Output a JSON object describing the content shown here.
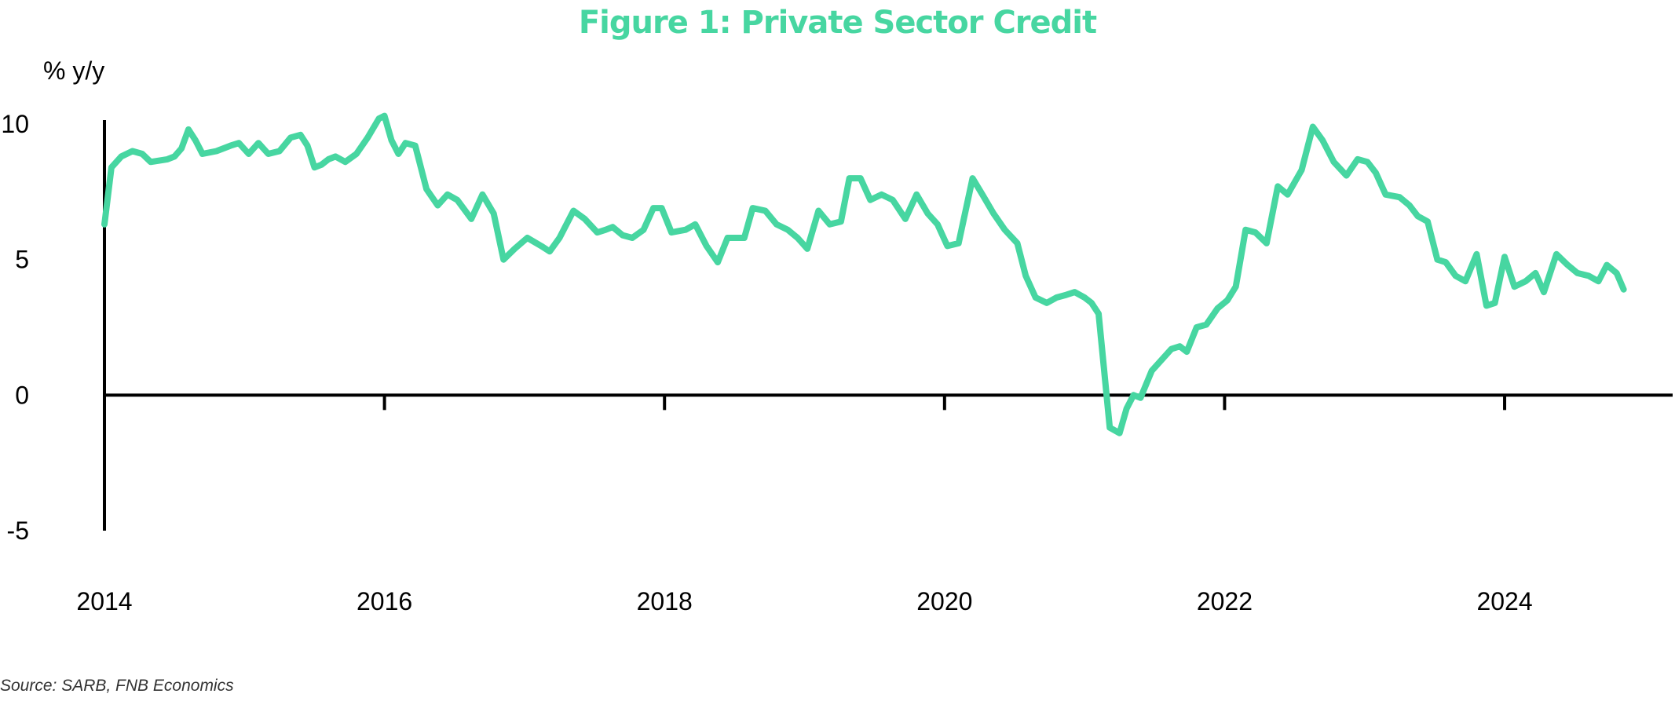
{
  "chart_data": {
    "type": "line",
    "title": "Figure 1: Private Sector Credit",
    "ylabel": "% y/y",
    "xlabel": "",
    "source": "Source: SARB, FNB Economics",
    "line_color": "#47d6a1",
    "axis_color": "#000000",
    "xlim": [
      2014.0,
      2025.2
    ],
    "ylim": [
      -5,
      10
    ],
    "y_ticks": [
      10,
      5,
      0,
      -5
    ],
    "y_tick_labels": [
      "10",
      "5",
      "0",
      "-5"
    ],
    "x_ticks": [
      2016,
      2018,
      2020,
      2022,
      2024
    ],
    "x_tick_labels": [
      "2014",
      "2016",
      "2018",
      "2020",
      "2022",
      "2024"
    ],
    "x_tick_label_values": [
      2014,
      2016,
      2018,
      2020,
      2022,
      2024
    ],
    "grid": false,
    "series": [
      {
        "values": [
          [
            2014.0,
            6.3
          ],
          [
            2014.05,
            8.4
          ],
          [
            2014.12,
            8.8
          ],
          [
            2014.2,
            9.0
          ],
          [
            2014.27,
            8.9
          ],
          [
            2014.33,
            8.6
          ],
          [
            2014.45,
            8.7
          ],
          [
            2014.5,
            8.8
          ],
          [
            2014.55,
            9.1
          ],
          [
            2014.6,
            9.8
          ],
          [
            2014.65,
            9.4
          ],
          [
            2014.7,
            8.9
          ],
          [
            2014.8,
            9.0
          ],
          [
            2014.9,
            9.2
          ],
          [
            2014.96,
            9.3
          ],
          [
            2015.03,
            8.9
          ],
          [
            2015.1,
            9.3
          ],
          [
            2015.17,
            8.9
          ],
          [
            2015.25,
            9.0
          ],
          [
            2015.33,
            9.5
          ],
          [
            2015.4,
            9.6
          ],
          [
            2015.45,
            9.2
          ],
          [
            2015.5,
            8.4
          ],
          [
            2015.55,
            8.5
          ],
          [
            2015.6,
            8.7
          ],
          [
            2015.65,
            8.8
          ],
          [
            2015.72,
            8.6
          ],
          [
            2015.8,
            8.9
          ],
          [
            2015.88,
            9.5
          ],
          [
            2015.96,
            10.2
          ],
          [
            2016.0,
            10.3
          ],
          [
            2016.05,
            9.4
          ],
          [
            2016.1,
            8.9
          ],
          [
            2016.15,
            9.3
          ],
          [
            2016.22,
            9.2
          ],
          [
            2016.3,
            7.6
          ],
          [
            2016.38,
            7.0
          ],
          [
            2016.45,
            7.4
          ],
          [
            2016.52,
            7.2
          ],
          [
            2016.62,
            6.5
          ],
          [
            2016.7,
            7.4
          ],
          [
            2016.78,
            6.7
          ],
          [
            2016.85,
            5.0
          ],
          [
            2016.93,
            5.4
          ],
          [
            2017.02,
            5.8
          ],
          [
            2017.12,
            5.5
          ],
          [
            2017.18,
            5.3
          ],
          [
            2017.25,
            5.8
          ],
          [
            2017.35,
            6.8
          ],
          [
            2017.43,
            6.5
          ],
          [
            2017.52,
            6.0
          ],
          [
            2017.58,
            6.1
          ],
          [
            2017.63,
            6.2
          ],
          [
            2017.7,
            5.9
          ],
          [
            2017.77,
            5.8
          ],
          [
            2017.85,
            6.1
          ],
          [
            2017.92,
            6.9
          ],
          [
            2017.98,
            6.9
          ],
          [
            2018.05,
            6.0
          ],
          [
            2018.15,
            6.1
          ],
          [
            2018.22,
            6.3
          ],
          [
            2018.3,
            5.5
          ],
          [
            2018.38,
            4.9
          ],
          [
            2018.45,
            5.8
          ],
          [
            2018.52,
            5.8
          ],
          [
            2018.57,
            5.8
          ],
          [
            2018.63,
            6.9
          ],
          [
            2018.72,
            6.8
          ],
          [
            2018.8,
            6.3
          ],
          [
            2018.88,
            6.1
          ],
          [
            2018.95,
            5.8
          ],
          [
            2019.02,
            5.4
          ],
          [
            2019.1,
            6.8
          ],
          [
            2019.18,
            6.3
          ],
          [
            2019.26,
            6.4
          ],
          [
            2019.32,
            8.0
          ],
          [
            2019.4,
            8.0
          ],
          [
            2019.47,
            7.2
          ],
          [
            2019.55,
            7.4
          ],
          [
            2019.63,
            7.2
          ],
          [
            2019.72,
            6.5
          ],
          [
            2019.8,
            7.4
          ],
          [
            2019.88,
            6.7
          ],
          [
            2019.95,
            6.3
          ],
          [
            2020.02,
            5.5
          ],
          [
            2020.1,
            5.6
          ],
          [
            2020.2,
            8.0
          ],
          [
            2020.27,
            7.4
          ],
          [
            2020.35,
            6.7
          ],
          [
            2020.43,
            6.1
          ],
          [
            2020.52,
            5.6
          ],
          [
            2020.58,
            4.4
          ],
          [
            2020.65,
            3.6
          ],
          [
            2020.73,
            3.4
          ],
          [
            2020.8,
            3.6
          ],
          [
            2020.87,
            3.7
          ],
          [
            2020.93,
            3.8
          ],
          [
            2021.0,
            3.6
          ],
          [
            2021.05,
            3.4
          ],
          [
            2021.1,
            3.0
          ],
          [
            2021.18,
            -1.2
          ],
          [
            2021.25,
            -1.4
          ],
          [
            2021.3,
            -0.5
          ],
          [
            2021.35,
            0.0
          ],
          [
            2021.4,
            -0.1
          ],
          [
            2021.48,
            0.9
          ],
          [
            2021.55,
            1.3
          ],
          [
            2021.62,
            1.7
          ],
          [
            2021.68,
            1.8
          ],
          [
            2021.73,
            1.6
          ],
          [
            2021.8,
            2.5
          ],
          [
            2021.87,
            2.6
          ],
          [
            2021.95,
            3.2
          ],
          [
            2022.02,
            3.5
          ],
          [
            2022.08,
            4.0
          ],
          [
            2022.15,
            6.1
          ],
          [
            2022.22,
            6.0
          ],
          [
            2022.3,
            5.6
          ],
          [
            2022.38,
            7.7
          ],
          [
            2022.45,
            7.4
          ],
          [
            2022.55,
            8.3
          ],
          [
            2022.63,
            9.9
          ],
          [
            2022.7,
            9.4
          ],
          [
            2022.78,
            8.6
          ],
          [
            2022.87,
            8.1
          ],
          [
            2022.95,
            8.7
          ],
          [
            2023.02,
            8.6
          ],
          [
            2023.08,
            8.2
          ],
          [
            2023.15,
            7.4
          ],
          [
            2023.25,
            7.3
          ],
          [
            2023.32,
            7.0
          ],
          [
            2023.38,
            6.6
          ],
          [
            2023.45,
            6.4
          ],
          [
            2023.52,
            5.0
          ],
          [
            2023.58,
            4.9
          ],
          [
            2023.65,
            4.4
          ],
          [
            2023.72,
            4.2
          ],
          [
            2023.8,
            5.2
          ],
          [
            2023.87,
            3.3
          ],
          [
            2023.93,
            3.4
          ],
          [
            2024.0,
            5.1
          ],
          [
            2024.07,
            4.0
          ],
          [
            2024.15,
            4.2
          ],
          [
            2024.22,
            4.5
          ],
          [
            2024.28,
            3.8
          ],
          [
            2024.37,
            5.2
          ],
          [
            2024.45,
            4.8
          ],
          [
            2024.52,
            4.5
          ],
          [
            2024.6,
            4.4
          ],
          [
            2024.67,
            4.2
          ],
          [
            2024.73,
            4.8
          ],
          [
            2024.8,
            4.5
          ],
          [
            2024.85,
            3.9
          ]
        ]
      }
    ]
  }
}
